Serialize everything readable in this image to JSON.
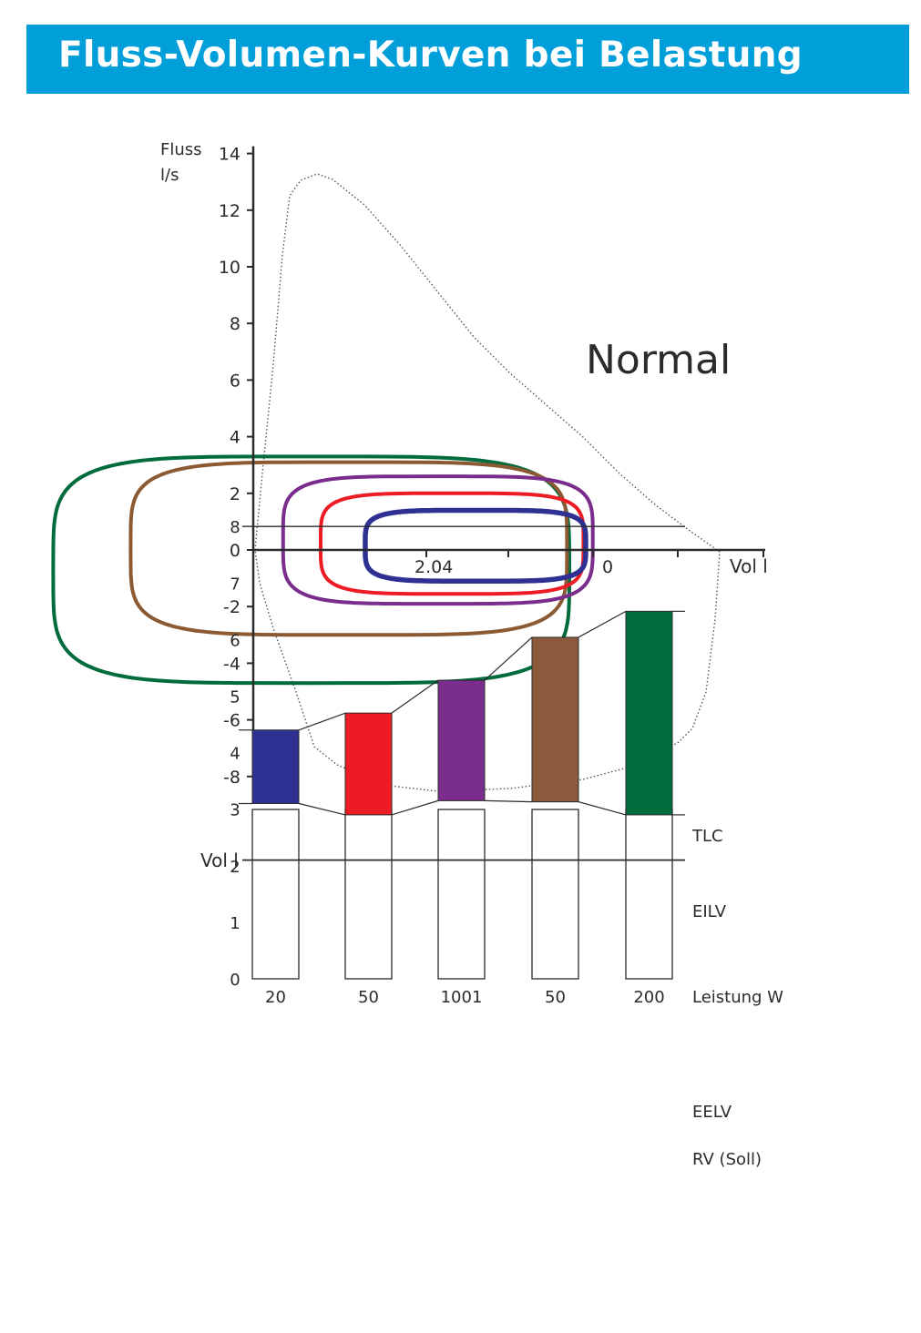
{
  "header": {
    "title": "Fluss-Volumen-Kurven bei Belastung",
    "background": "#009fd9"
  },
  "chart_data": [
    {
      "type": "line",
      "ylabel": "Fluss\nl/s",
      "ylabel_lines": [
        "Fluss",
        "l/s"
      ],
      "xlabel": "Vol l",
      "annotation": "Normal",
      "ylim": [
        -8.5,
        14
      ],
      "yticks": [
        14,
        12,
        10,
        8,
        6,
        4,
        2,
        0,
        -2,
        -4,
        -6,
        -8
      ],
      "xtick_labels": [
        "2.04",
        "0"
      ],
      "reference_loop": {
        "style": "dotted",
        "color": "#555555"
      },
      "series": [
        {
          "color": "#006b3c",
          "center_x": 3.1,
          "width": 5.5,
          "y_top": 3.3,
          "y_bottom": -4.7
        },
        {
          "color": "#8b5a33",
          "center_x": 2.7,
          "width": 4.65,
          "y_top": 3.1,
          "y_bottom": -3.0
        },
        {
          "color": "#7a2d8c",
          "center_x": 1.75,
          "width": 3.3,
          "y_top": 2.6,
          "y_bottom": -1.9
        },
        {
          "color": "#ed1c24",
          "center_x": 1.6,
          "width": 2.8,
          "y_top": 2.0,
          "y_bottom": -1.55
        },
        {
          "color": "#2e3192",
          "center_x": 1.35,
          "width": 2.35,
          "y_top": 1.4,
          "y_bottom": -1.1
        }
      ]
    },
    {
      "type": "bar",
      "ylabel": "Vol l",
      "xlabel": "Leistung W",
      "ylim": [
        0,
        8.8
      ],
      "yticks": [
        8,
        7,
        6,
        5,
        4,
        3,
        2,
        1,
        0
      ],
      "categories": [
        "20",
        "50",
        "1001",
        "50",
        "200"
      ],
      "series": [
        {
          "name": "EELV",
          "values": [
            3.1,
            2.9,
            3.15,
            3.13,
            2.9
          ]
        },
        {
          "name": "EILV",
          "values": [
            4.4,
            4.7,
            5.28,
            6.04,
            6.5
          ]
        }
      ],
      "colors": [
        "#2e3192",
        "#ed1c24",
        "#7a2d8c",
        "#8b5a3c",
        "#006b3c"
      ],
      "reference_lines": [
        {
          "name": "TLC",
          "value": 8.0
        },
        {
          "name": "RV (Soll)",
          "value": 2.1
        }
      ],
      "line_labels": [
        "TLC",
        "EILV",
        "EELV",
        "RV (Soll)"
      ]
    }
  ]
}
